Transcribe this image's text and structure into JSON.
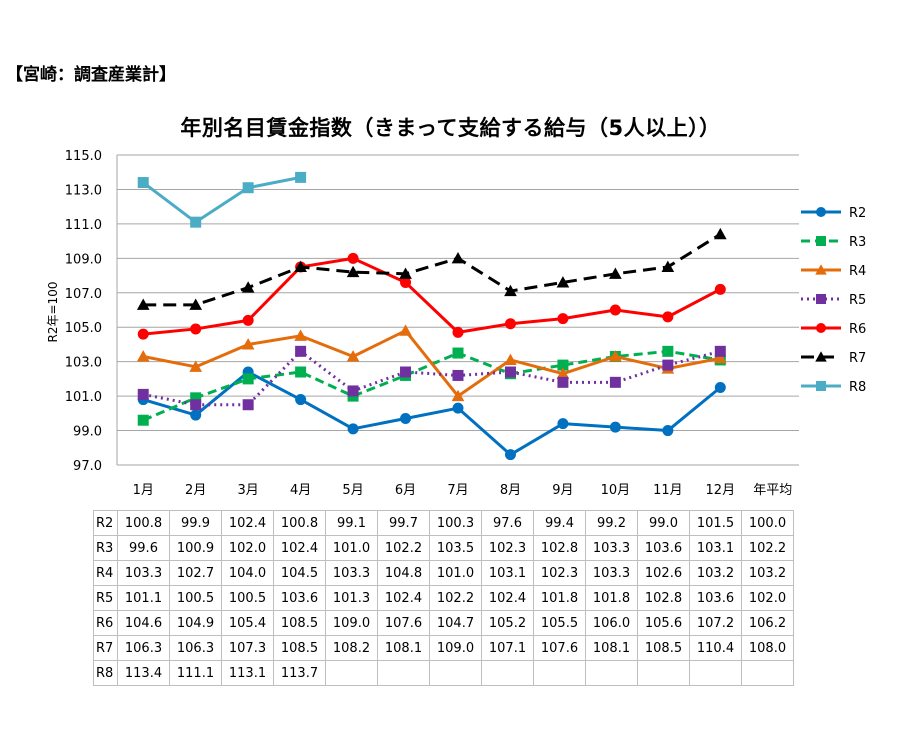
{
  "header": "【宮崎：調査産業計】",
  "chart_data": {
    "type": "line",
    "title": "年別名目賃金指数（きまって支給する給与（5人以上））",
    "ylabel": "R2年=100",
    "xlabel": "",
    "ylim": [
      97.0,
      115.0
    ],
    "yticks": [
      "115.0",
      "113.0",
      "111.0",
      "109.0",
      "107.0",
      "105.0",
      "103.0",
      "101.0",
      "99.0",
      "97.0"
    ],
    "ytick_values": [
      115,
      113,
      111,
      109,
      107,
      105,
      103,
      101,
      99,
      97
    ],
    "categories": [
      "1月",
      "2月",
      "3月",
      "4月",
      "5月",
      "6月",
      "7月",
      "8月",
      "9月",
      "10月",
      "11月",
      "12月",
      "年平均"
    ],
    "grid": true,
    "legend": "right",
    "series": [
      {
        "name": "R2",
        "color": "#0070c0",
        "dash": "none",
        "marker": "circle",
        "values": [
          100.8,
          99.9,
          102.4,
          100.8,
          99.1,
          99.7,
          100.3,
          97.6,
          99.4,
          99.2,
          99.0,
          101.5,
          null
        ],
        "labels": [
          "100.8",
          "99.9",
          "102.4",
          "100.8",
          "99.1",
          "99.7",
          "100.3",
          "97.6",
          "99.4",
          "99.2",
          "99.0",
          "101.5",
          "100.0"
        ]
      },
      {
        "name": "R3",
        "color": "#00b050",
        "dash": "dash",
        "marker": "square",
        "values": [
          99.6,
          100.9,
          102.0,
          102.4,
          101.0,
          102.2,
          103.5,
          102.3,
          102.8,
          103.3,
          103.6,
          103.1,
          null
        ],
        "labels": [
          "99.6",
          "100.9",
          "102.0",
          "102.4",
          "101.0",
          "102.2",
          "103.5",
          "102.3",
          "102.8",
          "103.3",
          "103.6",
          "103.1",
          "102.2"
        ]
      },
      {
        "name": "R4",
        "color": "#e46c0a",
        "dash": "none",
        "marker": "triangle",
        "values": [
          103.3,
          102.7,
          104.0,
          104.5,
          103.3,
          104.8,
          101.0,
          103.1,
          102.3,
          103.3,
          102.6,
          103.2,
          null
        ],
        "labels": [
          "103.3",
          "102.7",
          "104.0",
          "104.5",
          "103.3",
          "104.8",
          "101.0",
          "103.1",
          "102.3",
          "103.3",
          "102.6",
          "103.2",
          "103.2"
        ]
      },
      {
        "name": "R5",
        "color": "#7030a0",
        "dash": "dot",
        "marker": "square",
        "values": [
          101.1,
          100.5,
          100.5,
          103.6,
          101.3,
          102.4,
          102.2,
          102.4,
          101.8,
          101.8,
          102.8,
          103.6,
          null
        ],
        "labels": [
          "101.1",
          "100.5",
          "100.5",
          "103.6",
          "101.3",
          "102.4",
          "102.2",
          "102.4",
          "101.8",
          "101.8",
          "102.8",
          "103.6",
          "102.0"
        ]
      },
      {
        "name": "R6",
        "color": "#ff0000",
        "dash": "none",
        "marker": "circle",
        "values": [
          104.6,
          104.9,
          105.4,
          108.5,
          109.0,
          107.6,
          104.7,
          105.2,
          105.5,
          106.0,
          105.6,
          107.2,
          null
        ],
        "labels": [
          "104.6",
          "104.9",
          "105.4",
          "108.5",
          "109.0",
          "107.6",
          "104.7",
          "105.2",
          "105.5",
          "106.0",
          "105.6",
          "107.2",
          "106.2"
        ]
      },
      {
        "name": "R7",
        "color": "#000000",
        "dash": "longdash",
        "marker": "triangle",
        "values": [
          106.3,
          106.3,
          107.3,
          108.5,
          108.2,
          108.1,
          109.0,
          107.1,
          107.6,
          108.1,
          108.5,
          110.4,
          null
        ],
        "labels": [
          "106.3",
          "106.3",
          "107.3",
          "108.5",
          "108.2",
          "108.1",
          "109.0",
          "107.1",
          "107.6",
          "108.1",
          "108.5",
          "110.4",
          "108.0"
        ]
      },
      {
        "name": "R8",
        "color": "#4bacc6",
        "dash": "none",
        "marker": "square",
        "values": [
          113.4,
          111.1,
          113.1,
          113.7,
          null,
          null,
          null,
          null,
          null,
          null,
          null,
          null,
          null
        ],
        "labels": [
          "113.4",
          "111.1",
          "113.1",
          "113.7",
          "",
          "",
          "",
          "",
          "",
          "",
          "",
          "",
          ""
        ]
      }
    ]
  }
}
